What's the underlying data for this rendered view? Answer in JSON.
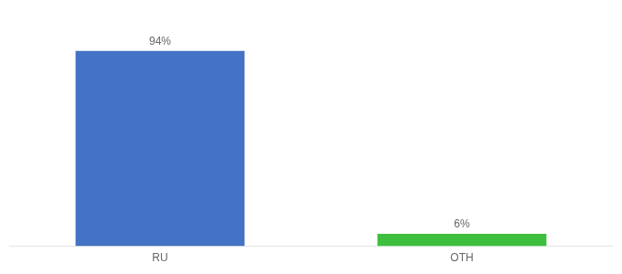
{
  "chart_data": {
    "type": "bar",
    "categories": [
      "RU",
      "OTH"
    ],
    "values": [
      94,
      6
    ],
    "value_labels": [
      "94%",
      "6%"
    ],
    "data_labels": true,
    "colors": [
      "#4472c4",
      "#3dbf3d"
    ],
    "ylim": [
      0,
      108
    ],
    "grid": false,
    "tick_labels": "x"
  }
}
